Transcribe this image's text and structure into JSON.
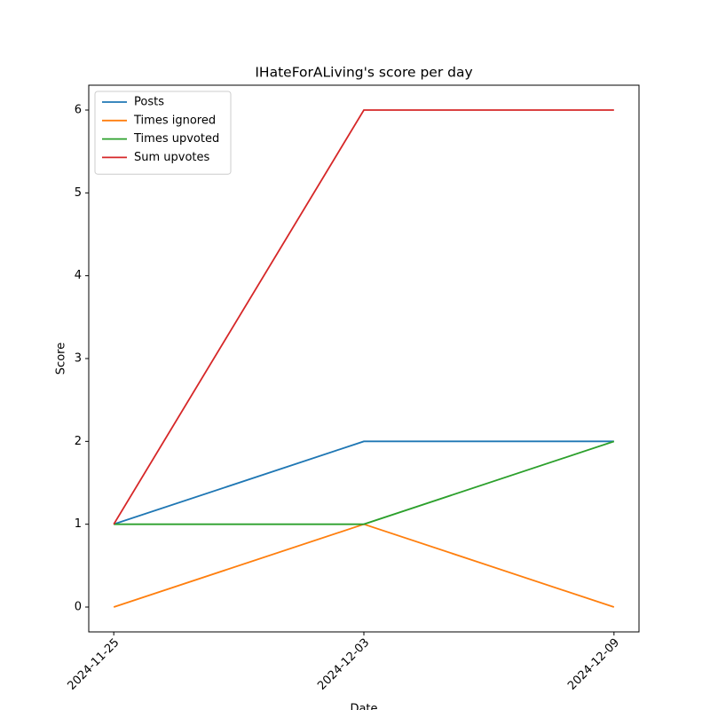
{
  "chart_data": {
    "type": "line",
    "title": "IHateForALiving's score per day",
    "x_label": "Date",
    "y_label": "Score",
    "categories": [
      "2024-11-25",
      "2024-12-03",
      "2024-12-09"
    ],
    "series": [
      {
        "name": "Posts",
        "color": "#1f77b4",
        "values": [
          1,
          2,
          2
        ]
      },
      {
        "name": "Times ignored",
        "color": "#ff7f0e",
        "values": [
          0,
          1,
          0
        ]
      },
      {
        "name": "Times upvoted",
        "color": "#2ca02c",
        "values": [
          1,
          1,
          2
        ]
      },
      {
        "name": "Sum upvotes",
        "color": "#d62728",
        "values": [
          1,
          6,
          6
        ]
      }
    ],
    "ylim": [
      -0.3,
      6.3
    ],
    "yticks": [
      0,
      1,
      2,
      3,
      4,
      5,
      6
    ],
    "grid": false,
    "legend": "upper left"
  }
}
